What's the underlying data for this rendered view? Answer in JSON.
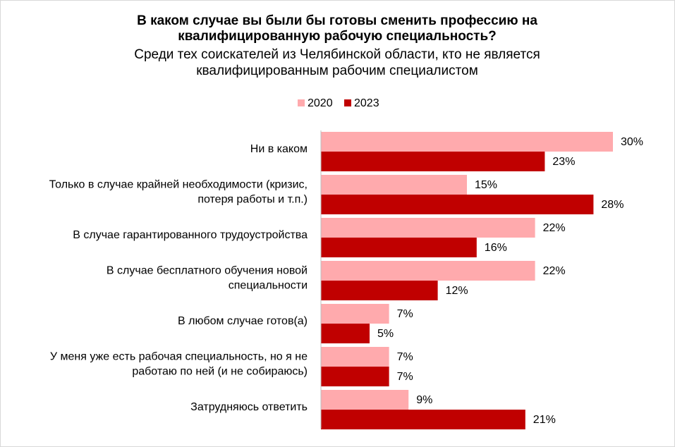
{
  "chart_data": {
    "type": "bar",
    "orientation": "horizontal",
    "title": [
      "В каком случае вы были бы готовы сменить профессию на",
      "квалифицированную рабочую специальность?"
    ],
    "subtitle": [
      "Среди тех соискателей из Челябинской области, кто не является",
      "квалифицированным рабочим специалистом"
    ],
    "categories": [
      [
        "Ни в каком"
      ],
      [
        "Только в случае крайней необходимости (кризис,",
        "потеря работы и т.п.)"
      ],
      [
        "В случае гарантированного трудоустройства"
      ],
      [
        "В случае бесплатного обучения новой",
        "специальности"
      ],
      [
        "В любом случае готов(а)"
      ],
      [
        "У меня уже есть рабочая специальность, но я не",
        "работаю по ней (и не собираюсь)"
      ],
      [
        "Затрудняюсь ответить"
      ]
    ],
    "series": [
      {
        "name": "2020",
        "color": "#ffaaad",
        "values": [
          30,
          15,
          22,
          22,
          7,
          7,
          9
        ],
        "value_labels": [
          "30%",
          "15%",
          "22%",
          "22%",
          "7%",
          "7%",
          "9%"
        ]
      },
      {
        "name": "2023",
        "color": "#c00000",
        "values": [
          23,
          28,
          16,
          12,
          5,
          7,
          21
        ],
        "value_labels": [
          "23%",
          "28%",
          "16%",
          "12%",
          "5%",
          "7%",
          "21%"
        ]
      }
    ],
    "xlim": [
      0,
      30
    ],
    "legend": "top"
  }
}
